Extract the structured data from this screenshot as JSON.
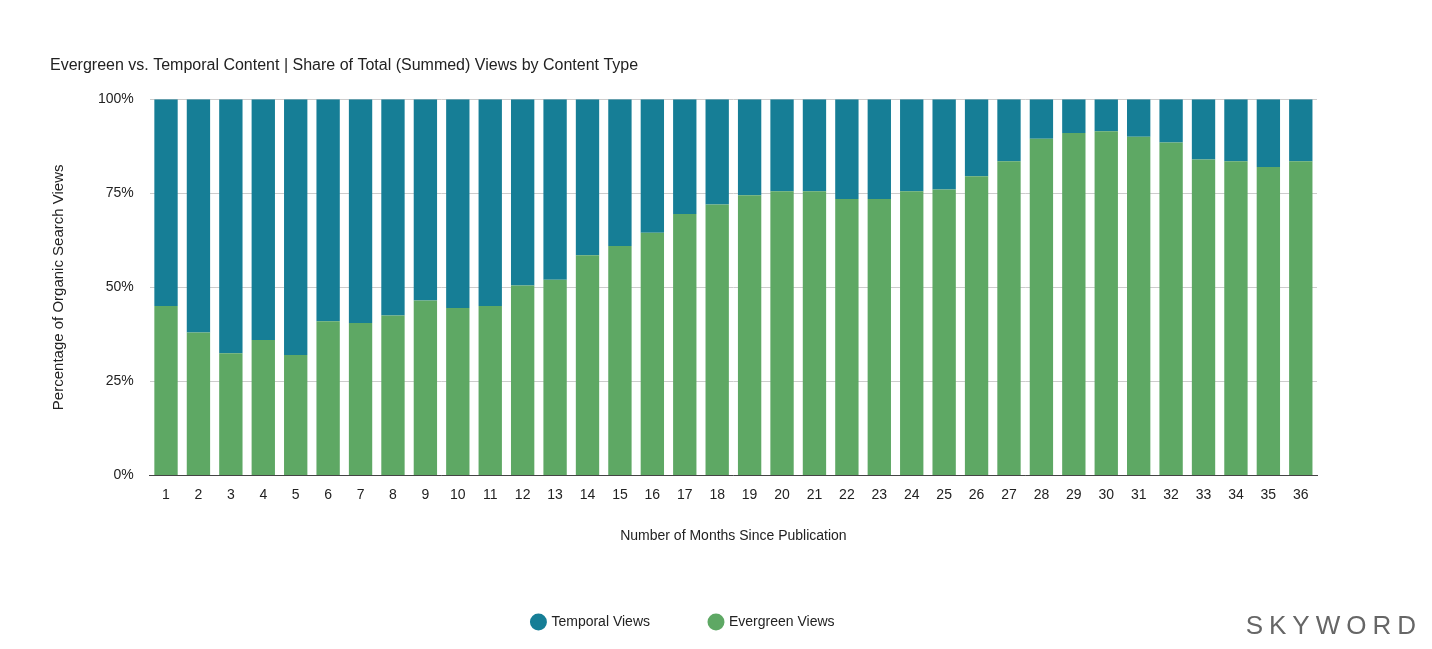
{
  "chart_data": {
    "type": "bar",
    "title": "Evergreen vs. Temporal Content | Share of Total (Summed) Views by Content Type",
    "x_label": "Number of Months Since Publication",
    "y_label": "Percentage of Organic Search Views",
    "annotations": [
      "SKYWORD"
    ],
    "categories": [
      "1",
      "2",
      "3",
      "4",
      "5",
      "6",
      "7",
      "8",
      "9",
      "10",
      "11",
      "12",
      "13",
      "14",
      "15",
      "16",
      "17",
      "18",
      "19",
      "20",
      "21",
      "22",
      "23",
      "24",
      "25",
      "26",
      "27",
      "28",
      "29",
      "30",
      "31",
      "32",
      "33",
      "34",
      "35",
      "36"
    ],
    "series": [
      {
        "name": "Evergreen Views",
        "color": "#5ea864",
        "values": [
          45,
          38,
          32.5,
          36,
          32,
          41,
          40.5,
          42.5,
          46.5,
          44.5,
          45,
          50.5,
          52,
          58.5,
          61,
          64.5,
          69.5,
          72,
          74.5,
          75.5,
          75.5,
          73.5,
          73.5,
          75.5,
          76,
          79.5,
          83.5,
          89.5,
          91,
          91.5,
          90,
          88.5,
          84,
          83.5,
          82,
          83.5
        ]
      },
      {
        "name": "Temporal Views",
        "color": "#167e96",
        "values": [
          55,
          62,
          67.5,
          64,
          68,
          59,
          59.5,
          57.5,
          53.5,
          55.5,
          55,
          49.5,
          48,
          41.5,
          39,
          35.5,
          30.5,
          28,
          25.5,
          24.5,
          24.5,
          26.5,
          26.5,
          24.5,
          24,
          20.5,
          16.5,
          10.5,
          9,
          8.5,
          10,
          11.5,
          16,
          16.5,
          18,
          16.5
        ]
      }
    ],
    "stacked": true,
    "ylim": [
      0,
      100
    ],
    "yticks": [
      {
        "value": 0,
        "label": "0%"
      },
      {
        "value": 25,
        "label": "25%"
      },
      {
        "value": 50,
        "label": "50%"
      },
      {
        "value": 75,
        "label": "75%"
      },
      {
        "value": 100,
        "label": "100%"
      }
    ],
    "grid": true,
    "legend": "bottom"
  }
}
